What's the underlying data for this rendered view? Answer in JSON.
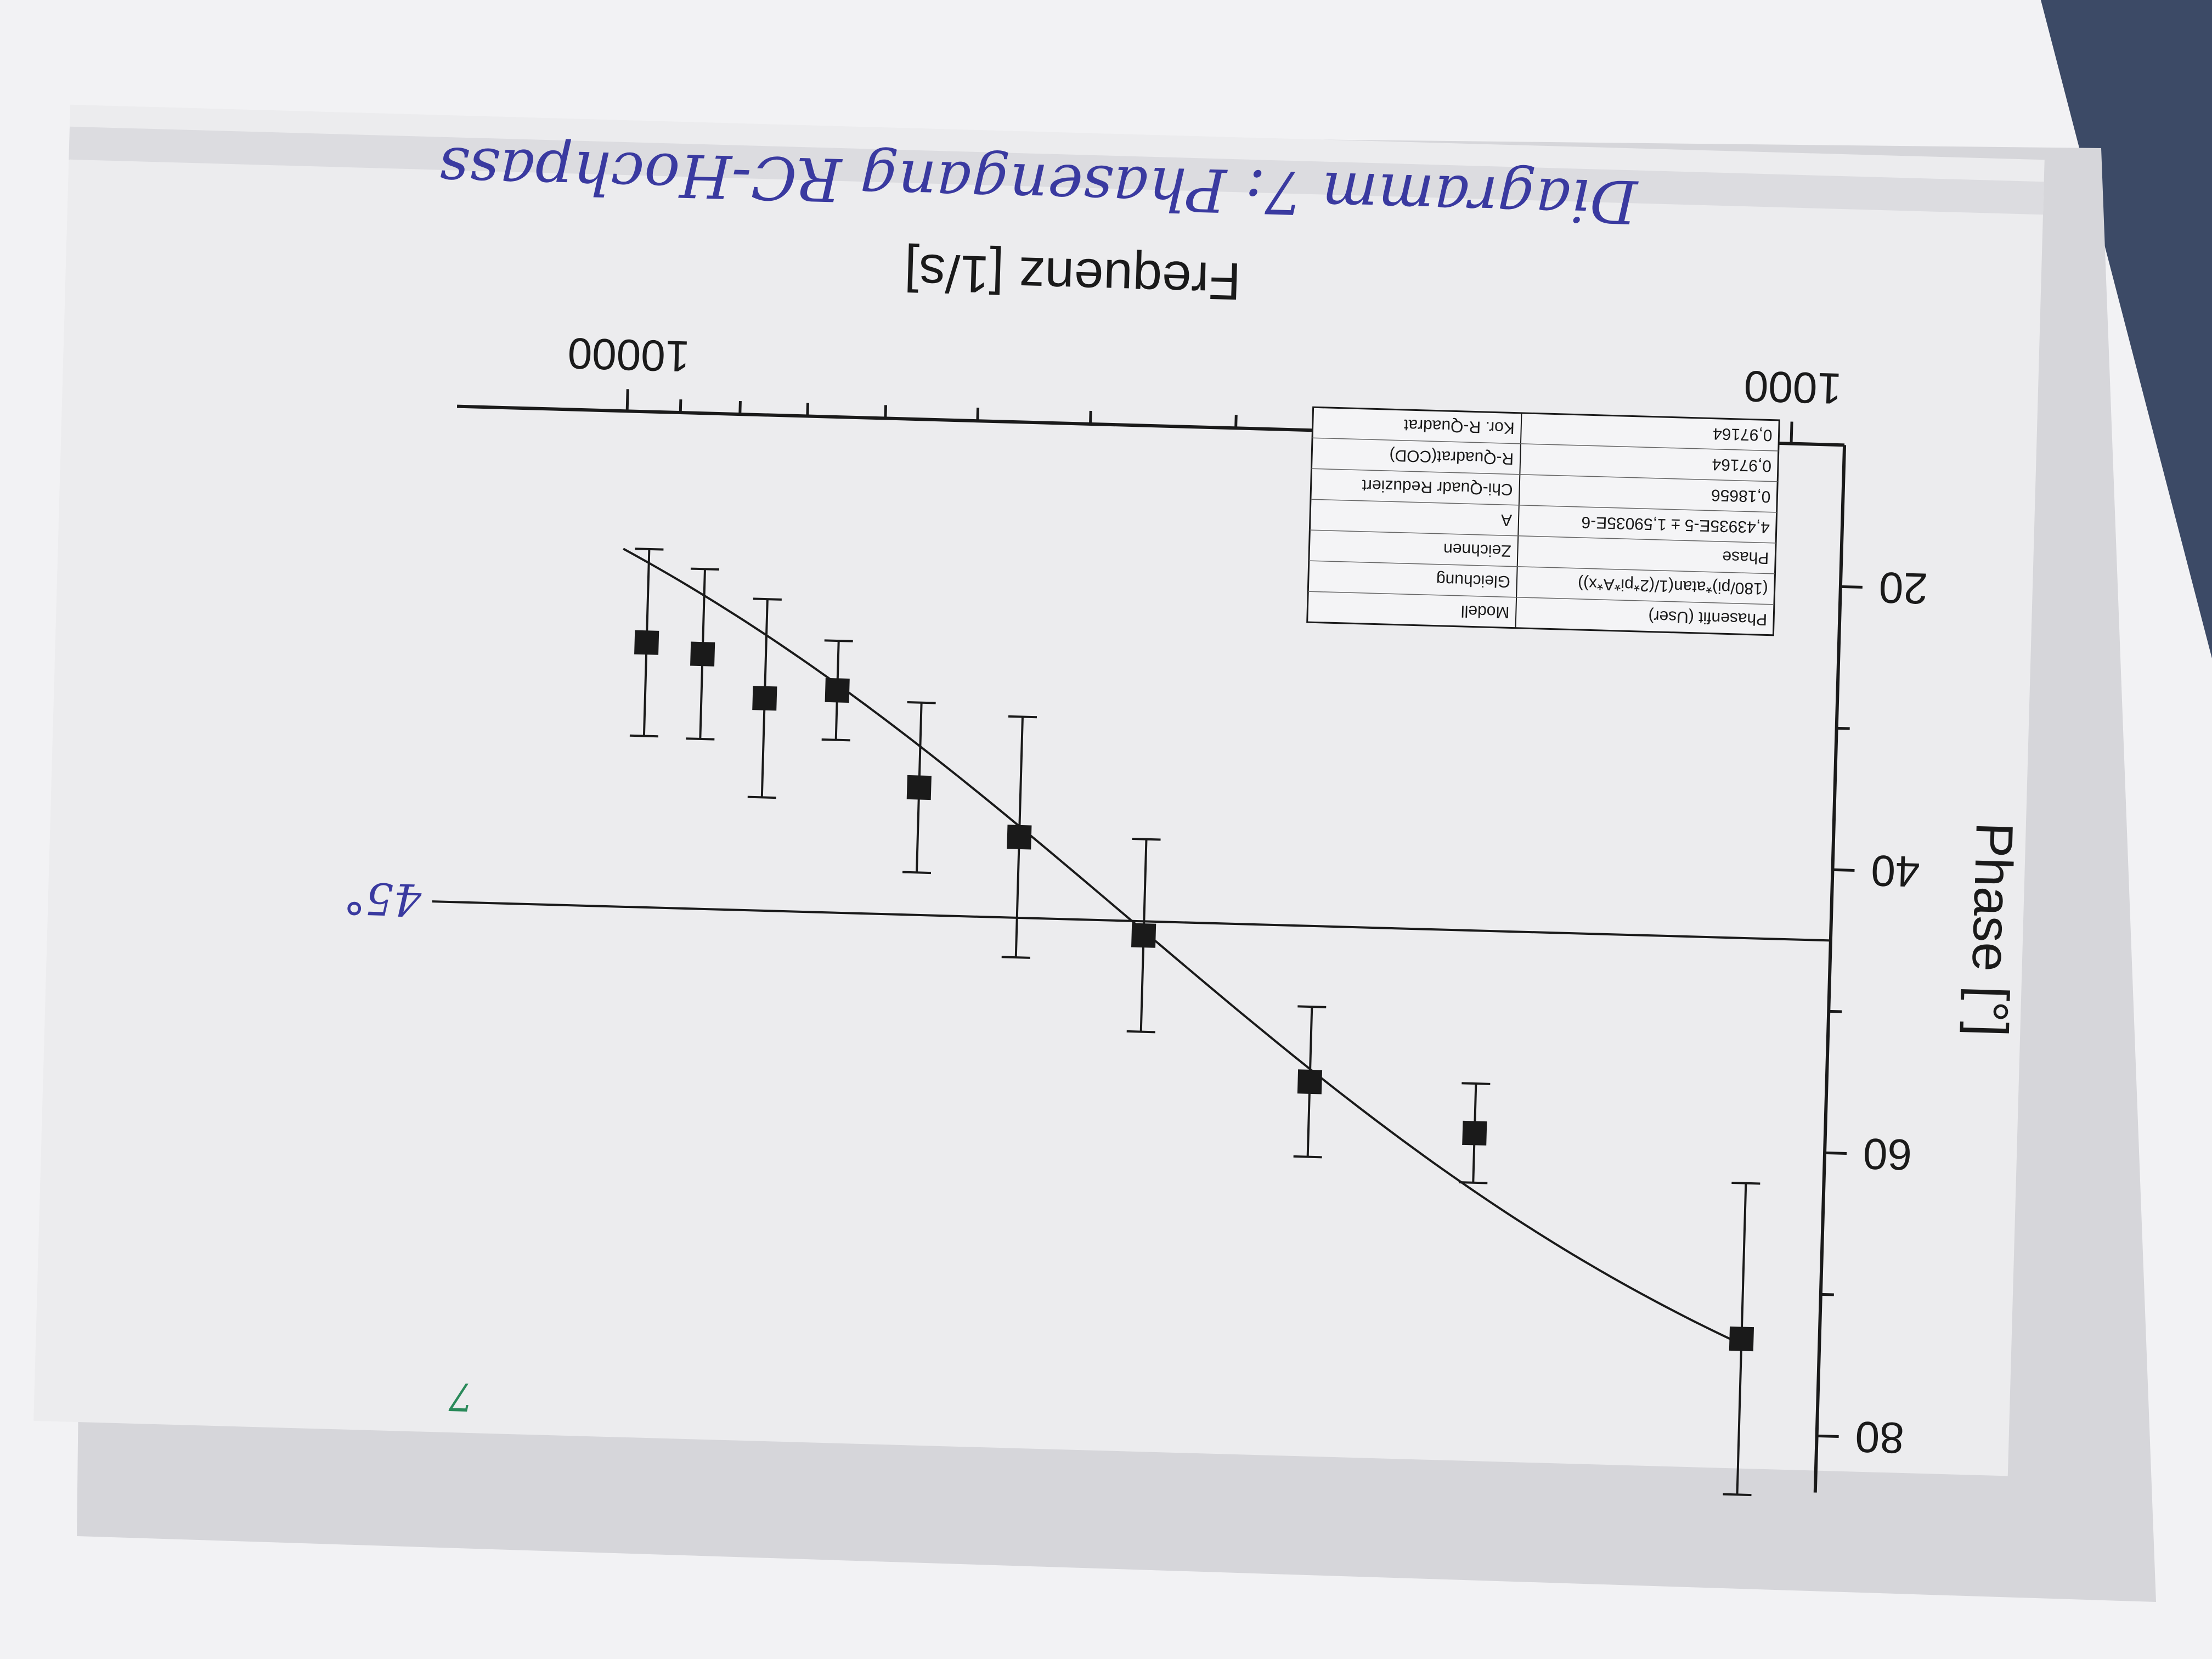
{
  "chart_data": {
    "type": "scatter",
    "xlabel": "Frequenz [1/s]",
    "ylabel": "Phase [°]",
    "xscale": "log",
    "xlim": [
      900,
      14000
    ],
    "ylim": [
      10,
      84
    ],
    "xticks": [
      {
        "value": 1000,
        "label": "1000"
      },
      {
        "value": 10000,
        "label": "10000"
      }
    ],
    "yticks": [
      {
        "value": 20,
        "label": "20"
      },
      {
        "value": 40,
        "label": "40"
      },
      {
        "value": 60,
        "label": "60"
      },
      {
        "value": 80,
        "label": "80"
      }
    ],
    "series": [
      {
        "kind": "points-with-errorbars",
        "points": [
          {
            "x": 1050,
            "y": 73.3,
            "err": 11.0
          },
          {
            "x": 1800,
            "y": 59.3,
            "err": 3.5
          },
          {
            "x": 2500,
            "y": 56.0,
            "err": 5.3
          },
          {
            "x": 3500,
            "y": 46.0,
            "err": 6.8
          },
          {
            "x": 4500,
            "y": 39.3,
            "err": 8.5
          },
          {
            "x": 5500,
            "y": 36.0,
            "err": 6.0
          },
          {
            "x": 6500,
            "y": 29.3,
            "err": 3.5
          },
          {
            "x": 7500,
            "y": 30.0,
            "err": 7.0
          },
          {
            "x": 8500,
            "y": 27.0,
            "err": 6.0
          },
          {
            "x": 9500,
            "y": 26.3,
            "err": 6.6
          }
        ]
      },
      {
        "kind": "fit",
        "equation": "(180/pi)*atan(1/(2*pi*A*x))",
        "A": 4.43935e-05
      }
    ],
    "reference_line": {
      "y": 45,
      "annotation": "45°"
    },
    "grid": false,
    "legend": "none",
    "fit_table": [
      [
        "Modell",
        "Phasenfit (User)"
      ],
      [
        "Gleichung",
        "(180/pi)*atan(1/(2*pi*A*x))"
      ],
      [
        "Zeichnen",
        "Phase"
      ],
      [
        "A",
        "4,43935E-5 ± 1,59035E-6"
      ],
      [
        "Chi-Quadr Reduziert",
        "0,18656"
      ],
      [
        "R-Quadrat(COD)",
        "0,97164"
      ],
      [
        "Kor. R-Quadrat",
        "0,97164"
      ]
    ]
  },
  "handwritten": {
    "caption": "Diagramm 7: Phasengang RC-Hochpass",
    "margin_mark": "7"
  },
  "colors": {
    "desk": "#9a9a9a",
    "paper": "#ececee",
    "ink": "#1a1a1a",
    "pen": "#3a3aa0"
  }
}
